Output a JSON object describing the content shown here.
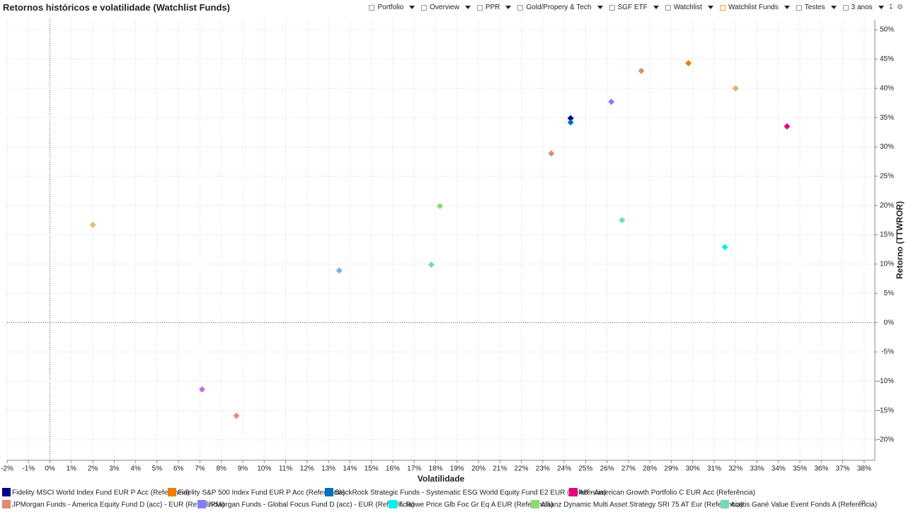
{
  "chart_data": {
    "type": "scatter",
    "title": "Retornos históricos e volatilidade (Watchlist Funds)",
    "x_label": "Volatilidade",
    "y_label": "Retorno (TTWROR)",
    "xlim": [
      -2,
      38.5
    ],
    "ylim": [
      -23.5,
      51.7
    ],
    "grid": true,
    "xticks": [
      {
        "value": -2,
        "label": "-2%"
      },
      {
        "value": -1,
        "label": "-1%"
      },
      {
        "value": 0,
        "label": "0%"
      },
      {
        "value": 1,
        "label": "1%"
      },
      {
        "value": 2,
        "label": "2%"
      },
      {
        "value": 3,
        "label": "3%"
      },
      {
        "value": 4,
        "label": "4%"
      },
      {
        "value": 5,
        "label": "5%"
      },
      {
        "value": 6,
        "label": "6%"
      },
      {
        "value": 7,
        "label": "7%"
      },
      {
        "value": 8,
        "label": "8%"
      },
      {
        "value": 9,
        "label": "9%"
      },
      {
        "value": 10,
        "label": "10%"
      },
      {
        "value": 11,
        "label": "11%"
      },
      {
        "value": 12,
        "label": "12%"
      },
      {
        "value": 13,
        "label": "13%"
      },
      {
        "value": 14,
        "label": "14%"
      },
      {
        "value": 15,
        "label": "15%"
      },
      {
        "value": 16,
        "label": "16%"
      },
      {
        "value": 17,
        "label": "17%"
      },
      {
        "value": 18,
        "label": "18%"
      },
      {
        "value": 19,
        "label": "19%"
      },
      {
        "value": 20,
        "label": "20%"
      },
      {
        "value": 21,
        "label": "21%"
      },
      {
        "value": 22,
        "label": "22%"
      },
      {
        "value": 23,
        "label": "23%"
      },
      {
        "value": 24,
        "label": "24%"
      },
      {
        "value": 25,
        "label": "25%"
      },
      {
        "value": 26,
        "label": "26%"
      },
      {
        "value": 27,
        "label": "27%"
      },
      {
        "value": 28,
        "label": "28%"
      },
      {
        "value": 29,
        "label": "29%"
      },
      {
        "value": 30,
        "label": "30%"
      },
      {
        "value": 31,
        "label": "31%"
      },
      {
        "value": 32,
        "label": "32%"
      },
      {
        "value": 33,
        "label": "33%"
      },
      {
        "value": 34,
        "label": "34%"
      },
      {
        "value": 35,
        "label": "35%"
      },
      {
        "value": 36,
        "label": "36%"
      },
      {
        "value": 37,
        "label": "37%"
      },
      {
        "value": 38,
        "label": "38%"
      }
    ],
    "yticks": [
      {
        "value": -20,
        "label": "-20%"
      },
      {
        "value": -15,
        "label": "-15%"
      },
      {
        "value": -10,
        "label": "-10%"
      },
      {
        "value": -5,
        "label": "-5%"
      },
      {
        "value": 0,
        "label": "0%"
      },
      {
        "value": 5,
        "label": "5%"
      },
      {
        "value": 10,
        "label": "10%"
      },
      {
        "value": 15,
        "label": "15%"
      },
      {
        "value": 20,
        "label": "20%"
      },
      {
        "value": 25,
        "label": "25%"
      },
      {
        "value": 30,
        "label": "30%"
      },
      {
        "value": 35,
        "label": "35%"
      },
      {
        "value": 40,
        "label": "40%"
      },
      {
        "value": 45,
        "label": "45%"
      },
      {
        "value": 50,
        "label": "50%"
      }
    ],
    "series": [
      {
        "name": "Fidelity MSCI World Index Fund EUR P Acc (Referência)",
        "color": "#00008b",
        "x": [
          24.3
        ],
        "y": [
          34.9
        ]
      },
      {
        "name": "Fidelity S&P 500 Index Fund EUR P Acc (Referência)",
        "color": "#f07c00",
        "x": [
          29.8
        ],
        "y": [
          44.3
        ]
      },
      {
        "name": "BlackRock Strategic Funds - Systematic ESG World Equity Fund E2 EUR (Referência)",
        "color": "#0070c0",
        "x": [
          24.3
        ],
        "y": [
          34.2
        ]
      },
      {
        "name": "AB - American Growth Portfolio C EUR Acc (Referência)",
        "color": "#e6007e",
        "x": [
          34.4
        ],
        "y": [
          33.5
        ]
      },
      {
        "name": "JPMorgan Funds - America Equity Fund D (acc) - EUR (Referência)",
        "color": "#e08a70",
        "x": [
          27.6
        ],
        "y": [
          43.0
        ]
      },
      {
        "name": "JPMorgan Funds - Global Focus Fund D (acc) - EUR (Referência)",
        "color": "#8080ff",
        "x": [
          26.2
        ],
        "y": [
          37.7
        ]
      },
      {
        "name": "T. Rowe Price Glb Foc Gr Eq A EUR (Referência)",
        "color": "#00f0f0",
        "x": [
          31.5
        ],
        "y": [
          12.9
        ]
      },
      {
        "name": "Allianz Dynamic Multi Asset Strategy SRI 75 AT Eur (Referência)",
        "color": "#90d870",
        "x": [
          18.2
        ],
        "y": [
          19.9
        ]
      },
      {
        "name": "Acatis Gané Value Event Fonds A (Referência)",
        "color": "#70dcb0",
        "x": [
          26.7
        ],
        "y": [
          17.5
        ]
      },
      {
        "color": "#e0b070",
        "x": [
          32.0
        ],
        "y": [
          40.0
        ]
      },
      {
        "color": "#e08a70",
        "x": [
          23.4
        ],
        "y": [
          28.9
        ]
      },
      {
        "color": "#e0c070",
        "x": [
          2.0
        ],
        "y": [
          16.7
        ]
      },
      {
        "color": "#80b0e0",
        "x": [
          13.5
        ],
        "y": [
          8.9
        ]
      },
      {
        "color": "#70dcb0",
        "x": [
          17.8
        ],
        "y": [
          9.9
        ]
      },
      {
        "color": "#c070e0",
        "x": [
          7.1
        ],
        "y": [
          -11.4
        ]
      },
      {
        "color": "#e09070",
        "x": [
          8.7
        ],
        "y": [
          -15.9
        ]
      }
    ],
    "legend_more": "»"
  },
  "toolbar": {
    "tabs": [
      "Portfolio",
      "Overview",
      "PPR",
      "Gold/Propery & Tech",
      "SGF ETF",
      "Watchlist",
      "Watchlist Funds",
      "Testes"
    ],
    "period": "3 anos"
  }
}
